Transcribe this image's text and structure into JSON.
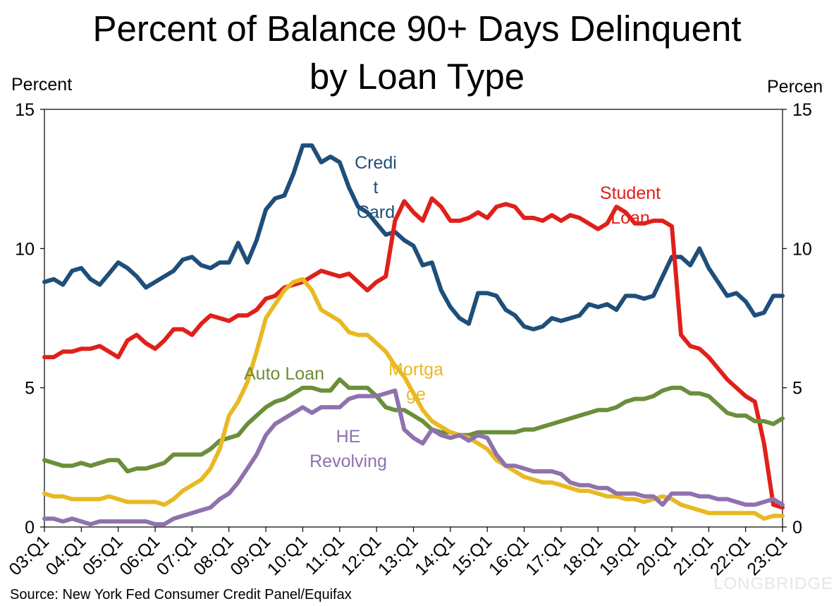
{
  "chart_data": {
    "type": "line",
    "title_lines": [
      "Percent of Balance 90+ Days Delinquent",
      "by Loan Type"
    ],
    "ylabel_left": "Percent",
    "ylabel_right": "Percent",
    "ylim": [
      0,
      15
    ],
    "yticks": [
      0,
      5,
      10,
      15
    ],
    "xticks": [
      "03:Q1",
      "04:Q1",
      "05:Q1",
      "06:Q1",
      "07:Q1",
      "08:Q1",
      "09:Q1",
      "10:Q1",
      "11:Q1",
      "12:Q1",
      "13:Q1",
      "14:Q1",
      "15:Q1",
      "16:Q1",
      "17:Q1",
      "18:Q1",
      "19:Q1",
      "20:Q1",
      "21:Q1",
      "22:Q1",
      "23:Q1"
    ],
    "x_start": "2003:Q1",
    "x_count": 81,
    "grid": false,
    "series": [
      {
        "name": "Credit Card",
        "color": "#1f4e79",
        "values": [
          8.8,
          8.9,
          8.7,
          9.2,
          9.3,
          8.9,
          8.7,
          9.1,
          9.5,
          9.3,
          9.0,
          8.6,
          8.8,
          9.0,
          9.2,
          9.6,
          9.7,
          9.4,
          9.3,
          9.5,
          9.5,
          10.2,
          9.5,
          10.3,
          11.4,
          11.8,
          11.9,
          12.7,
          13.7,
          13.7,
          13.1,
          13.3,
          13.1,
          12.2,
          11.5,
          11.3,
          10.9,
          10.5,
          10.6,
          10.3,
          10.1,
          9.4,
          9.5,
          8.5,
          7.9,
          7.5,
          7.3,
          8.4,
          8.4,
          8.3,
          7.8,
          7.6,
          7.2,
          7.1,
          7.2,
          7.5,
          7.4,
          7.5,
          7.6,
          8.0,
          7.9,
          8.0,
          7.8,
          8.3,
          8.3,
          8.2,
          8.3,
          9.0,
          9.7,
          9.7,
          9.4,
          10.0,
          9.3,
          8.8,
          8.3,
          8.4,
          8.1,
          7.6,
          7.7,
          8.3,
          8.3
        ]
      },
      {
        "name": "Student Loan",
        "color": "#e0201b",
        "values": [
          6.1,
          6.1,
          6.3,
          6.3,
          6.4,
          6.4,
          6.5,
          6.3,
          6.1,
          6.7,
          6.9,
          6.6,
          6.4,
          6.7,
          7.1,
          7.1,
          6.9,
          7.3,
          7.6,
          7.5,
          7.4,
          7.6,
          7.6,
          7.8,
          8.2,
          8.3,
          8.6,
          8.7,
          8.8,
          9.0,
          9.2,
          9.1,
          9.0,
          9.1,
          8.8,
          8.5,
          8.8,
          9.0,
          11.0,
          11.7,
          11.3,
          11.0,
          11.8,
          11.5,
          11.0,
          11.0,
          11.1,
          11.3,
          11.1,
          11.5,
          11.6,
          11.5,
          11.1,
          11.1,
          11.0,
          11.2,
          11.0,
          11.2,
          11.1,
          10.9,
          10.7,
          10.9,
          11.5,
          11.3,
          10.9,
          10.9,
          11.0,
          11.0,
          10.8,
          6.9,
          6.5,
          6.4,
          6.1,
          5.7,
          5.3,
          5.0,
          4.7,
          4.5,
          3.0,
          0.8,
          0.7
        ]
      },
      {
        "name": "Auto Loan",
        "color": "#6b8e3a",
        "values": [
          2.4,
          2.3,
          2.2,
          2.2,
          2.3,
          2.2,
          2.3,
          2.4,
          2.4,
          2.0,
          2.1,
          2.1,
          2.2,
          2.3,
          2.6,
          2.6,
          2.6,
          2.6,
          2.8,
          3.1,
          3.2,
          3.3,
          3.7,
          4.0,
          4.3,
          4.5,
          4.6,
          4.8,
          5.0,
          5.0,
          4.9,
          4.9,
          5.3,
          5.0,
          5.0,
          5.0,
          4.7,
          4.3,
          4.2,
          4.2,
          4.0,
          3.8,
          3.5,
          3.4,
          3.4,
          3.3,
          3.3,
          3.4,
          3.4,
          3.4,
          3.4,
          3.4,
          3.5,
          3.5,
          3.6,
          3.7,
          3.8,
          3.9,
          4.0,
          4.1,
          4.2,
          4.2,
          4.3,
          4.5,
          4.6,
          4.6,
          4.7,
          4.9,
          5.0,
          5.0,
          4.8,
          4.8,
          4.7,
          4.4,
          4.1,
          4.0,
          4.0,
          3.8,
          3.8,
          3.7,
          3.9
        ]
      },
      {
        "name": "Mortgage",
        "color": "#e8b923",
        "values": [
          1.2,
          1.1,
          1.1,
          1.0,
          1.0,
          1.0,
          1.0,
          1.1,
          1.0,
          0.9,
          0.9,
          0.9,
          0.9,
          0.8,
          1.0,
          1.3,
          1.5,
          1.7,
          2.1,
          2.8,
          4.0,
          4.5,
          5.2,
          6.3,
          7.5,
          8.0,
          8.5,
          8.8,
          8.9,
          8.5,
          7.8,
          7.6,
          7.4,
          7.0,
          6.9,
          6.9,
          6.6,
          6.3,
          5.8,
          5.4,
          4.8,
          4.2,
          3.8,
          3.6,
          3.4,
          3.3,
          3.2,
          3.0,
          2.8,
          2.4,
          2.2,
          2.0,
          1.8,
          1.7,
          1.6,
          1.6,
          1.5,
          1.4,
          1.3,
          1.3,
          1.2,
          1.1,
          1.1,
          1.0,
          1.0,
          0.9,
          1.0,
          1.1,
          1.0,
          0.8,
          0.7,
          0.6,
          0.5,
          0.5,
          0.5,
          0.5,
          0.5,
          0.5,
          0.3,
          0.4,
          0.4
        ]
      },
      {
        "name": "HE Revolving",
        "color": "#8e72ad",
        "values": [
          0.3,
          0.3,
          0.2,
          0.3,
          0.2,
          0.1,
          0.2,
          0.2,
          0.2,
          0.2,
          0.2,
          0.2,
          0.1,
          0.1,
          0.3,
          0.4,
          0.5,
          0.6,
          0.7,
          1.0,
          1.2,
          1.6,
          2.1,
          2.6,
          3.3,
          3.7,
          3.9,
          4.1,
          4.3,
          4.1,
          4.3,
          4.3,
          4.3,
          4.6,
          4.7,
          4.7,
          4.7,
          4.8,
          4.9,
          3.5,
          3.2,
          3.0,
          3.5,
          3.3,
          3.2,
          3.3,
          3.1,
          3.3,
          3.2,
          2.6,
          2.2,
          2.2,
          2.1,
          2.0,
          2.0,
          2.0,
          1.9,
          1.6,
          1.5,
          1.5,
          1.4,
          1.4,
          1.2,
          1.2,
          1.2,
          1.1,
          1.1,
          0.8,
          1.2,
          1.2,
          1.2,
          1.1,
          1.1,
          1.0,
          1.0,
          0.9,
          0.8,
          0.8,
          0.9,
          1.0,
          0.8
        ]
      }
    ],
    "annotations": [
      {
        "series": "Credit Card",
        "lines": [
          "Credi",
          "t",
          "Card"
        ],
        "align": "middle"
      },
      {
        "series": "Student Loan",
        "lines": [
          "Student",
          "Loan"
        ],
        "align": "middle"
      },
      {
        "series": "Auto Loan",
        "lines": [
          "Auto Loan"
        ],
        "align": "middle"
      },
      {
        "series": "Mortgage",
        "lines": [
          "Mortga",
          "ge"
        ],
        "align": "middle"
      },
      {
        "series": "HE Revolving",
        "lines": [
          "HE",
          "Revolving"
        ],
        "align": "middle"
      }
    ]
  },
  "source": "Source: New York Fed Consumer Credit Panel/Equifax",
  "watermark": "LONGBRIDGE"
}
